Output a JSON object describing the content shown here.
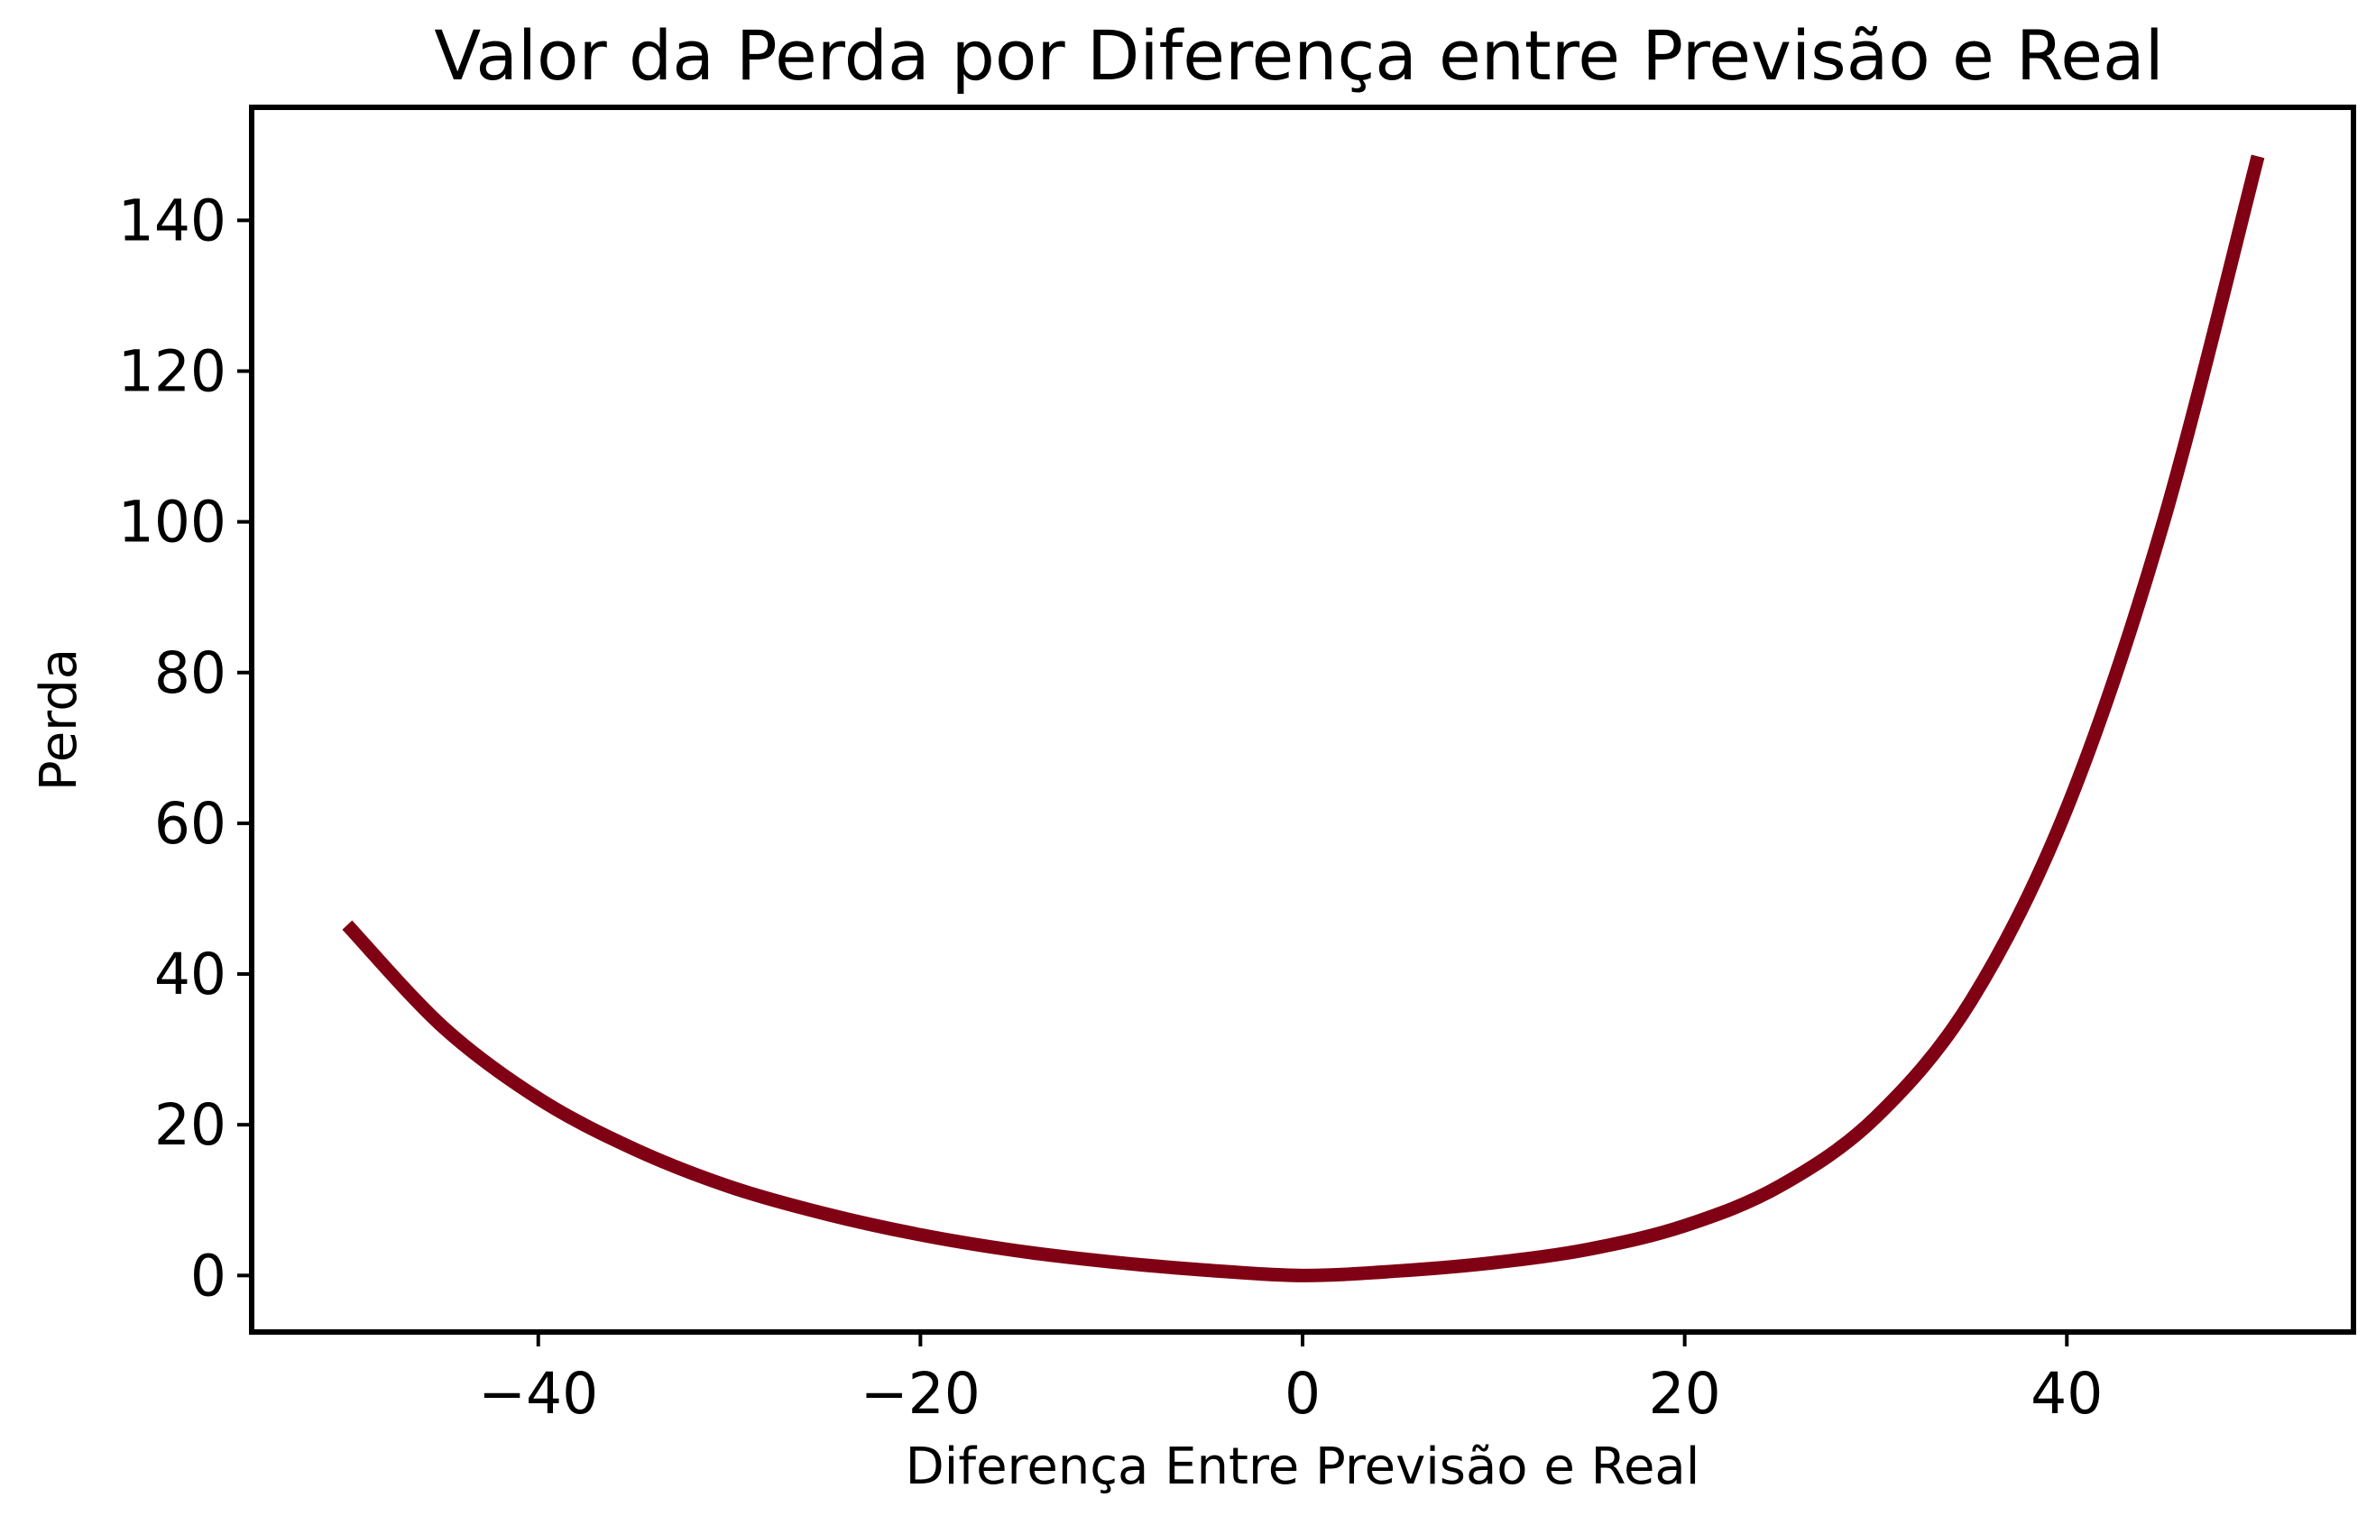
{
  "chart_data": {
    "type": "line",
    "title": "Valor da Perda por Diferença entre Previsão e Real",
    "xlabel": "Diferença Entre Previsão e Real",
    "ylabel": "Perda",
    "xlim": [
      -55,
      55
    ],
    "ylim": [
      -7.5,
      155
    ],
    "xticks": [
      {
        "value": -40,
        "label": "−40"
      },
      {
        "value": -20,
        "label": "−20"
      },
      {
        "value": 0,
        "label": "0"
      },
      {
        "value": 20,
        "label": "20"
      },
      {
        "value": 40,
        "label": "40"
      }
    ],
    "yticks": [
      {
        "value": 0,
        "label": "0"
      },
      {
        "value": 20,
        "label": "20"
      },
      {
        "value": 40,
        "label": "40"
      },
      {
        "value": 60,
        "label": "60"
      },
      {
        "value": 80,
        "label": "80"
      },
      {
        "value": 100,
        "label": "100"
      },
      {
        "value": 120,
        "label": "120"
      },
      {
        "value": 140,
        "label": "140"
      }
    ],
    "grid": false,
    "series": [
      {
        "color": "#800014",
        "x": [
          -50,
          -45,
          -40,
          -35,
          -30,
          -25,
          -20,
          -15,
          -10,
          -5,
          0,
          5,
          10,
          15,
          20,
          25,
          30,
          35,
          40,
          45,
          50
        ],
        "y": [
          46.5,
          33.0,
          23.5,
          16.8,
          11.8,
          8.2,
          5.4,
          3.3,
          1.8,
          0.7,
          0.0,
          0.6,
          1.7,
          3.5,
          6.6,
          11.9,
          21.0,
          36.5,
          62.0,
          99.5,
          148.5
        ]
      }
    ]
  }
}
